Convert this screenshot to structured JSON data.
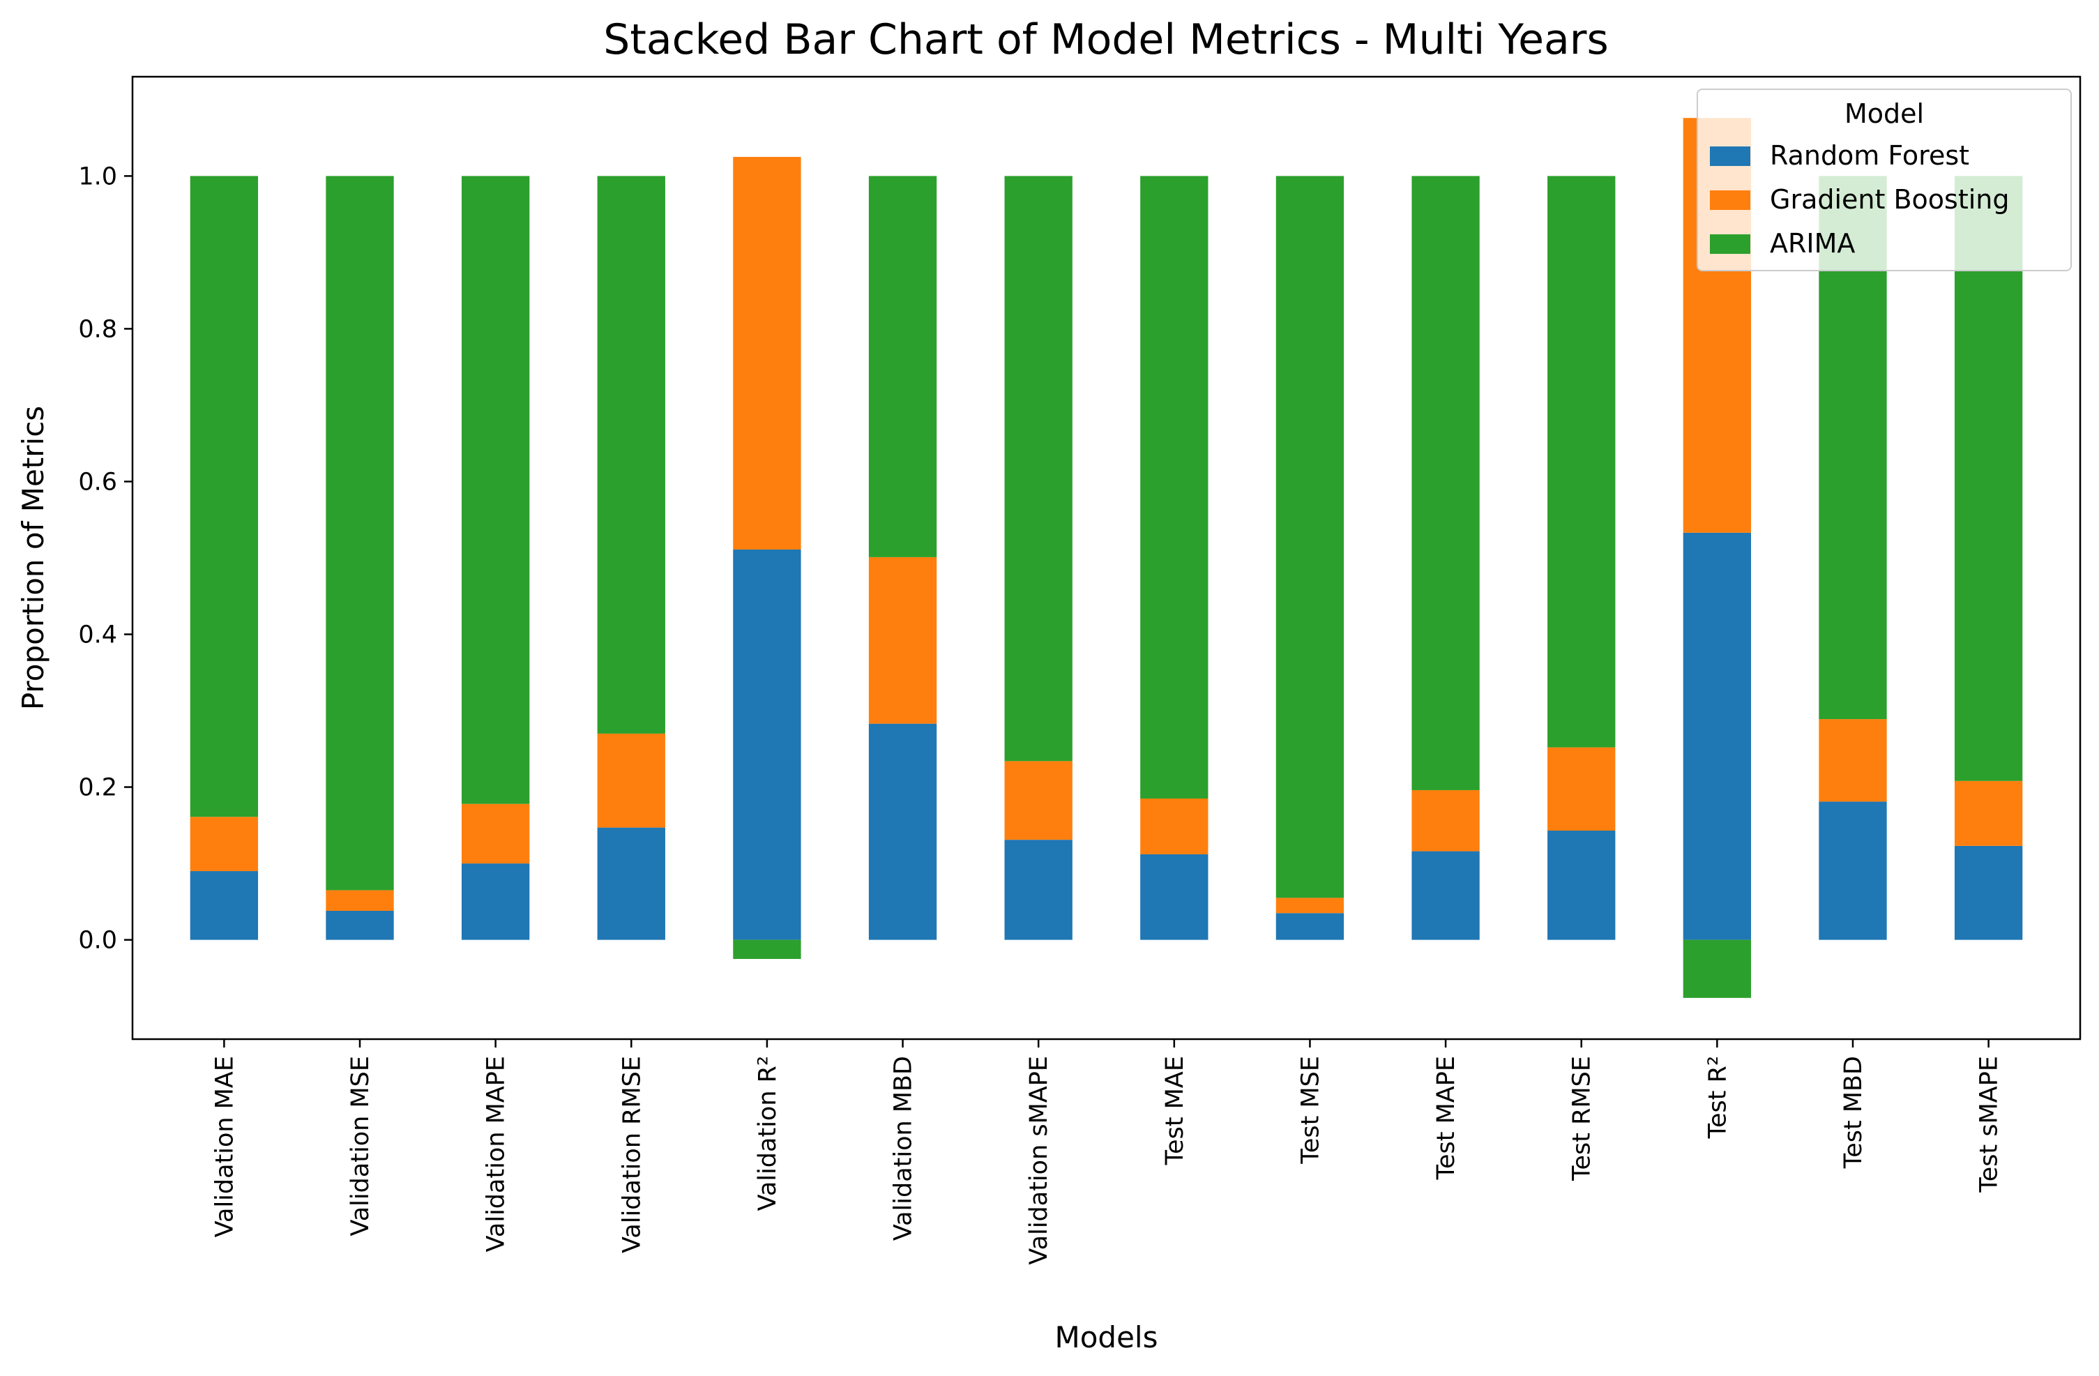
{
  "chart_data": {
    "type": "bar",
    "stacked": true,
    "title": "Stacked Bar Chart of Model Metrics - Multi Years",
    "xlabel": "Models",
    "ylabel": "Proportion of Metrics",
    "ylim": [
      -0.13,
      1.13
    ],
    "yticks": [
      "0.0",
      "0.2",
      "0.4",
      "0.6",
      "0.8",
      "1.0"
    ],
    "grid": false,
    "legend": {
      "title": "Model",
      "placement": "top-right"
    },
    "categories": [
      "Validation MAE",
      "Validation MSE",
      "Validation MAPE",
      "Validation RMSE",
      "Validation R²",
      "Validation MBD",
      "Validation sMAPE",
      "Test MAE",
      "Test MSE",
      "Test MAPE",
      "Test RMSE",
      "Test R²",
      "Test MBD",
      "Test sMAPE"
    ],
    "series": [
      {
        "name": "Random Forest",
        "color": "#1f77b4",
        "values": [
          0.09,
          0.038,
          0.1,
          0.147,
          0.511,
          0.283,
          0.131,
          0.112,
          0.035,
          0.116,
          0.143,
          0.533,
          0.181,
          0.123
        ]
      },
      {
        "name": "Gradient Boosting",
        "color": "#ff7f0e",
        "values": [
          0.071,
          0.027,
          0.078,
          0.123,
          0.514,
          0.218,
          0.103,
          0.073,
          0.02,
          0.08,
          0.109,
          0.543,
          0.108,
          0.085
        ]
      },
      {
        "name": "ARIMA",
        "color": "#2ca02c",
        "values": [
          0.839,
          0.935,
          0.822,
          0.73,
          -0.025,
          0.499,
          0.766,
          0.815,
          0.945,
          0.804,
          0.748,
          -0.076,
          0.711,
          0.792
        ]
      }
    ]
  }
}
